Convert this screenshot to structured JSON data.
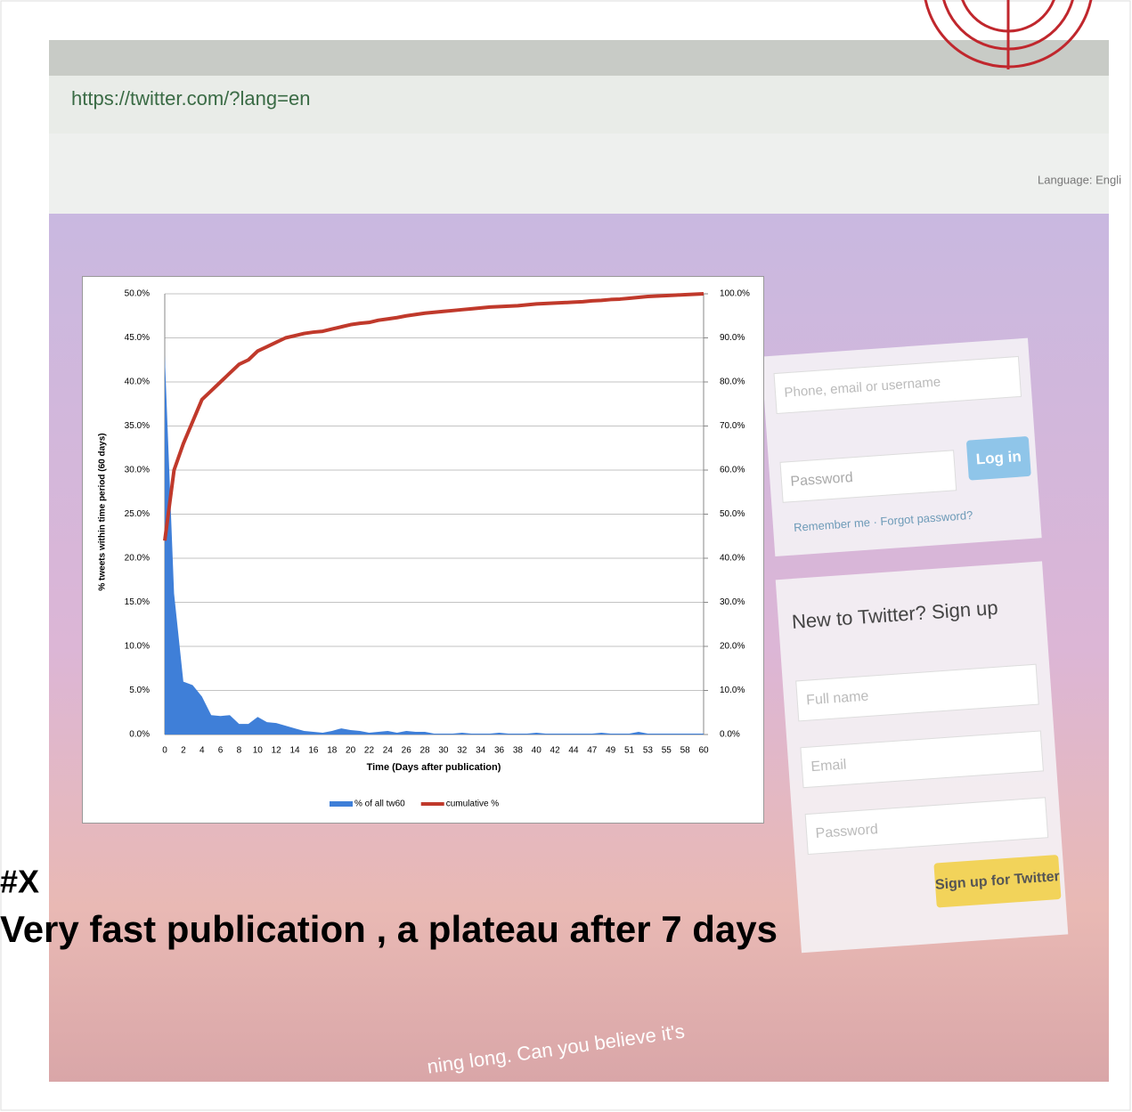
{
  "background": {
    "url": "https://twitter.com/?lang=en",
    "language": "Language: Engli",
    "login": {
      "username": "Phone, email or username",
      "password": "Password",
      "button": "Log in",
      "remember": "Remember me · Forgot password?"
    },
    "signup": {
      "heading": "New to Twitter? Sign up",
      "full_name": "Full name",
      "email": "Email",
      "password": "Password",
      "button": "Sign up for Twitter"
    },
    "caption": "ning long. Can you believe it's"
  },
  "slide": {
    "tag": "#X",
    "headline": "Very fast publication , a plateau after  7  days"
  },
  "chart_data": {
    "type": "area",
    "x_label": "Time (Days after publication)",
    "y_label": "% tweets within time period (60 days)",
    "categories": [
      "0",
      null,
      "2",
      null,
      "4",
      null,
      "6",
      null,
      "8",
      null,
      "10",
      null,
      "12",
      null,
      "14",
      null,
      "16",
      null,
      "18",
      null,
      "20",
      null,
      "22",
      null,
      "24",
      null,
      "26",
      null,
      "28",
      null,
      "30",
      null,
      "32",
      null,
      "34",
      null,
      "36",
      null,
      "38",
      null,
      "40",
      null,
      "42",
      null,
      "44",
      null,
      "47",
      null,
      "49",
      null,
      "51",
      null,
      "53",
      null,
      "55",
      null,
      "58",
      null,
      "60"
    ],
    "series": [
      {
        "name": "% of all tw60",
        "type": "area",
        "axis": "y",
        "color": "#3f7fd8",
        "values": [
          43,
          16,
          6,
          5.6,
          4.3,
          2.2,
          2.1,
          2.2,
          1.2,
          1.2,
          2.0,
          1.4,
          1.3,
          1.0,
          0.7,
          0.4,
          0.3,
          0.2,
          0.4,
          0.7,
          0.5,
          0.4,
          0.2,
          0.3,
          0.4,
          0.2,
          0.4,
          0.3,
          0.3,
          0.1,
          0.1,
          0.1,
          0.2,
          0.1,
          0.1,
          0.1,
          0.2,
          0.1,
          0.1,
          0.1,
          0.2,
          0.1,
          0.1,
          0.1,
          0.1,
          0.1,
          0.1,
          0.2,
          0.1,
          0.1,
          0.1,
          0.3,
          0.1,
          0.1,
          0.1,
          0.1,
          0.1,
          0.1,
          0.1
        ]
      },
      {
        "name": "cumulative %",
        "type": "line",
        "axis": "y2",
        "color": "#c0392b",
        "values": [
          44,
          60,
          66,
          71,
          76,
          78,
          80,
          82,
          84,
          85,
          87,
          88,
          89,
          90,
          90.5,
          91,
          91.3,
          91.5,
          92,
          92.5,
          93,
          93.3,
          93.5,
          94,
          94.3,
          94.6,
          95,
          95.3,
          95.6,
          95.8,
          96,
          96.2,
          96.4,
          96.6,
          96.8,
          97,
          97.1,
          97.2,
          97.3,
          97.5,
          97.7,
          97.8,
          97.9,
          98,
          98.1,
          98.2,
          98.4,
          98.5,
          98.7,
          98.8,
          99,
          99.2,
          99.4,
          99.5,
          99.6,
          99.7,
          99.8,
          99.9,
          100
        ]
      }
    ],
    "ylim": [
      0,
      50
    ],
    "yticks": [
      {
        "value": 0,
        "label": "0.0%"
      },
      {
        "value": 5,
        "label": "5.0%"
      },
      {
        "value": 10,
        "label": "10.0%"
      },
      {
        "value": 15,
        "label": "15.0%"
      },
      {
        "value": 20,
        "label": "20.0%"
      },
      {
        "value": 25,
        "label": "25.0%"
      },
      {
        "value": 30,
        "label": "30.0%"
      },
      {
        "value": 35,
        "label": "35.0%"
      },
      {
        "value": 40,
        "label": "40.0%"
      },
      {
        "value": 45,
        "label": "45.0%"
      },
      {
        "value": 50,
        "label": "50.0%"
      }
    ],
    "y2lim": [
      0,
      100
    ],
    "y2ticks": [
      {
        "value": 0,
        "label": "0.0%"
      },
      {
        "value": 10,
        "label": "10.0%"
      },
      {
        "value": 20,
        "label": "20.0%"
      },
      {
        "value": 30,
        "label": "30.0%"
      },
      {
        "value": 40,
        "label": "40.0%"
      },
      {
        "value": 50,
        "label": "50.0%"
      },
      {
        "value": 60,
        "label": "60.0%"
      },
      {
        "value": 70,
        "label": "70.0%"
      },
      {
        "value": 80,
        "label": "80.0%"
      },
      {
        "value": 90,
        "label": "90.0%"
      },
      {
        "value": 100,
        "label": "100.0%"
      }
    ],
    "grid": true,
    "legend": "bottom"
  }
}
